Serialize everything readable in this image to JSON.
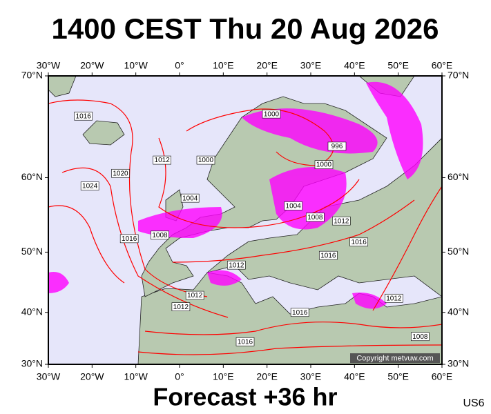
{
  "header": {
    "title": "1400 CEST Thu 20 Aug 2026"
  },
  "footer": {
    "forecast": "Forecast +36 hr",
    "model": "US6"
  },
  "copyright": "Copyright metvuw.com",
  "map": {
    "lonlim": [
      -30,
      60
    ],
    "latlim": [
      30,
      70
    ],
    "lonticks": [
      {
        "value": -30,
        "label": "30°W"
      },
      {
        "value": -20,
        "label": "20°W"
      },
      {
        "value": -10,
        "label": "10°W"
      },
      {
        "value": 0,
        "label": "0°"
      },
      {
        "value": 10,
        "label": "10°E"
      },
      {
        "value": 20,
        "label": "20°E"
      },
      {
        "value": 30,
        "label": "30°E"
      },
      {
        "value": 40,
        "label": "40°E"
      },
      {
        "value": 50,
        "label": "50°E"
      },
      {
        "value": 60,
        "label": "60°E"
      }
    ],
    "latticks": [
      {
        "value": 30,
        "label": "30°N"
      },
      {
        "value": 40,
        "label": "40°N"
      },
      {
        "value": 50,
        "label": "50°N"
      },
      {
        "value": 60,
        "label": "60°N"
      },
      {
        "value": 70,
        "label": "70°N"
      }
    ],
    "isobars": [
      {
        "value": 1016,
        "lon": -22,
        "lat": 66.5
      },
      {
        "value": 1000,
        "lon": 21,
        "lat": 66.7
      },
      {
        "value": 996,
        "lon": 36,
        "lat": 63.5
      },
      {
        "value": 1000,
        "lon": 33,
        "lat": 61.5
      },
      {
        "value": 1012,
        "lon": -4,
        "lat": 62
      },
      {
        "value": 1020,
        "lon": -13.5,
        "lat": 60.5
      },
      {
        "value": 1024,
        "lon": -20.5,
        "lat": 59
      },
      {
        "value": 1000,
        "lon": 6,
        "lat": 62
      },
      {
        "value": 1004,
        "lon": 2.4,
        "lat": 57.5
      },
      {
        "value": 1004,
        "lon": 26,
        "lat": 56.5
      },
      {
        "value": 1008,
        "lon": 31,
        "lat": 55
      },
      {
        "value": 1012,
        "lon": 37,
        "lat": 54.5
      },
      {
        "value": 1016,
        "lon": 41,
        "lat": 51.5
      },
      {
        "value": 1008,
        "lon": -4.5,
        "lat": 52.5
      },
      {
        "value": 1016,
        "lon": -11.5,
        "lat": 52
      },
      {
        "value": 1016,
        "lon": 34,
        "lat": 49.5
      },
      {
        "value": 1012,
        "lon": 13,
        "lat": 48
      },
      {
        "value": 1012,
        "lon": 3.5,
        "lat": 43
      },
      {
        "value": 1012,
        "lon": 0.3,
        "lat": 41
      },
      {
        "value": 1016,
        "lon": 27.5,
        "lat": 40
      },
      {
        "value": 1012,
        "lon": 49,
        "lat": 42.5
      },
      {
        "value": 1008,
        "lon": 55,
        "lat": 35.5
      },
      {
        "value": 1016,
        "lon": 15,
        "lat": 34.5
      }
    ]
  }
}
